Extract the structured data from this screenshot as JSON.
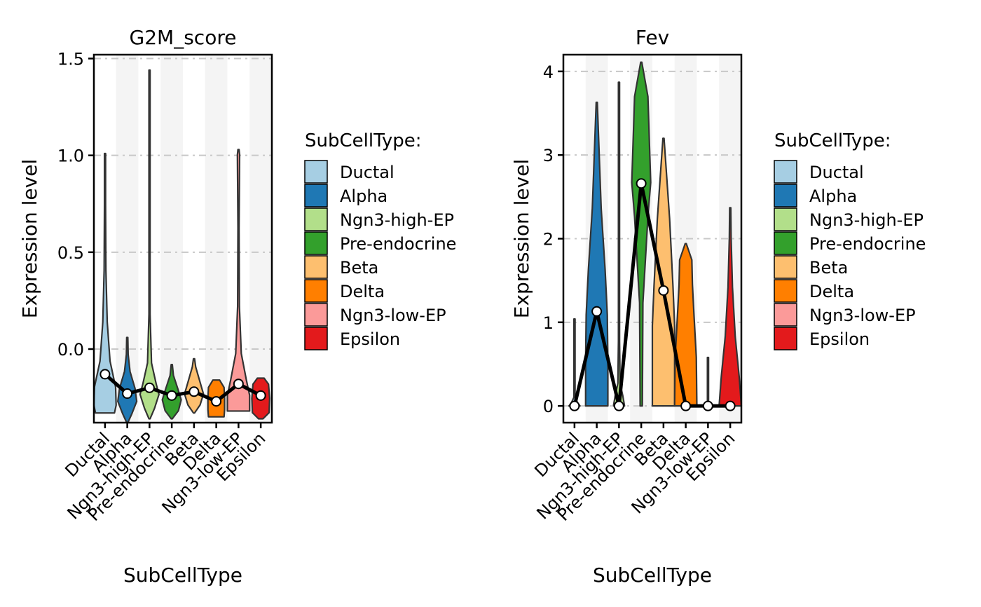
{
  "chart_data": [
    {
      "type": "violin",
      "title": "G2M_score",
      "xlabel": "SubCellType",
      "ylabel": "Expression level",
      "ylim": [
        -0.38,
        1.52
      ],
      "yticks": [
        0.0,
        0.5,
        1.0,
        1.5
      ],
      "ytick_labels": [
        "0.0",
        "0.5",
        "1.0",
        "1.5"
      ],
      "grid": "horizontal dashed",
      "legend": {
        "position": "right",
        "title": "SubCellType:"
      },
      "categories": [
        "Ductal",
        "Alpha",
        "Ngn3-high-EP",
        "Pre-endocrine",
        "Beta",
        "Delta",
        "Ngn3-low-EP",
        "Epsilon"
      ],
      "violins": [
        {
          "category": "Ductal",
          "min": -0.33,
          "max": 1.01,
          "median": -0.13
        },
        {
          "category": "Alpha",
          "min": -0.38,
          "max": 0.06,
          "median": -0.23
        },
        {
          "category": "Ngn3-high-EP",
          "min": -0.36,
          "max": 1.44,
          "median": -0.2
        },
        {
          "category": "Pre-endocrine",
          "min": -0.36,
          "max": -0.08,
          "median": -0.24
        },
        {
          "category": "Beta",
          "min": -0.33,
          "max": -0.05,
          "median": -0.22
        },
        {
          "category": "Delta",
          "min": -0.35,
          "max": -0.16,
          "median": -0.27
        },
        {
          "category": "Ngn3-low-EP",
          "min": -0.32,
          "max": 1.03,
          "median": -0.18
        },
        {
          "category": "Epsilon",
          "min": -0.36,
          "max": -0.15,
          "median": -0.24
        }
      ]
    },
    {
      "type": "violin",
      "title": "Fev",
      "xlabel": "SubCellType",
      "ylabel": "Expression level",
      "ylim": [
        -0.2,
        4.2
      ],
      "yticks": [
        0,
        1,
        2,
        3,
        4
      ],
      "ytick_labels": [
        "0",
        "1",
        "2",
        "3",
        "4"
      ],
      "grid": "horizontal dashed",
      "legend": {
        "position": "right",
        "title": "SubCellType:"
      },
      "categories": [
        "Ductal",
        "Alpha",
        "Ngn3-high-EP",
        "Pre-endocrine",
        "Beta",
        "Delta",
        "Ngn3-low-EP",
        "Epsilon"
      ],
      "violins": [
        {
          "category": "Ductal",
          "min": 0,
          "max": 1.04,
          "median": 0
        },
        {
          "category": "Alpha",
          "min": 0,
          "max": 3.63,
          "median": 1.13
        },
        {
          "category": "Ngn3-high-EP",
          "min": 0,
          "max": 3.87,
          "median": 0
        },
        {
          "category": "Pre-endocrine",
          "min": 0,
          "max": 4.11,
          "median": 2.66
        },
        {
          "category": "Beta",
          "min": 0,
          "max": 3.2,
          "median": 1.38
        },
        {
          "category": "Delta",
          "min": 0,
          "max": 1.94,
          "median": 0
        },
        {
          "category": "Ngn3-low-EP",
          "min": 0,
          "max": 0.58,
          "median": 0
        },
        {
          "category": "Epsilon",
          "min": 0,
          "max": 2.37,
          "median": 0
        }
      ]
    }
  ],
  "legend_entries": [
    {
      "label": "Ductal",
      "color": "#A6CEE3"
    },
    {
      "label": "Alpha",
      "color": "#1F78B4"
    },
    {
      "label": "Ngn3-high-EP",
      "color": "#B2DF8A"
    },
    {
      "label": "Pre-endocrine",
      "color": "#33A02C"
    },
    {
      "label": "Beta",
      "color": "#FDBF6F"
    },
    {
      "label": "Delta",
      "color": "#FF7F00"
    },
    {
      "label": "Ngn3-low-EP",
      "color": "#FB9A99"
    },
    {
      "label": "Epsilon",
      "color": "#E31A1C"
    }
  ]
}
